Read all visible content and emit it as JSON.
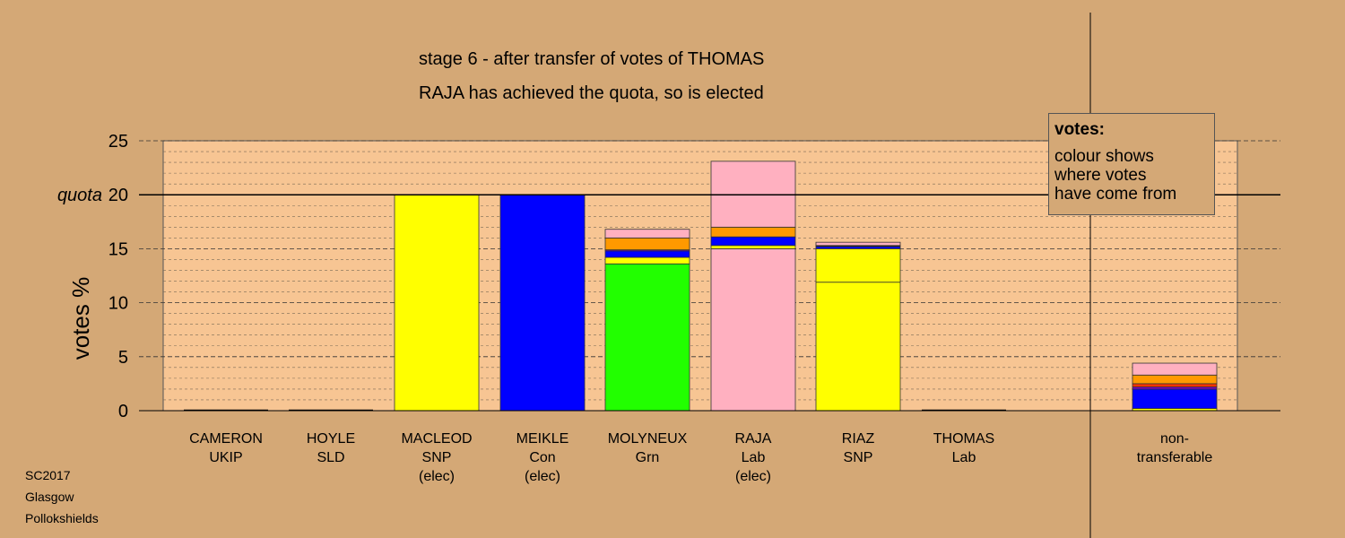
{
  "chart_data": {
    "type": "bar",
    "stacked": true,
    "title": "stage 6 - after transfer of votes of THOMAS",
    "subtitle": "RAJA has achieved the quota, so is elected",
    "ylabel": "votes %",
    "ylim": [
      0,
      25
    ],
    "yticks": [
      0,
      5,
      10,
      15,
      20,
      25
    ],
    "quota": 20,
    "quota_label": "quota",
    "grid": true,
    "categories": [
      {
        "lines": [
          "CAMERON",
          "UKIP"
        ]
      },
      {
        "lines": [
          "HOYLE",
          "SLD"
        ]
      },
      {
        "lines": [
          "MACLEOD",
          "SNP",
          "(elec)"
        ]
      },
      {
        "lines": [
          "MEIKLE",
          "Con",
          "(elec)"
        ]
      },
      {
        "lines": [
          "MOLYNEUX",
          "Grn"
        ]
      },
      {
        "lines": [
          "RAJA",
          "Lab",
          "(elec)"
        ]
      },
      {
        "lines": [
          "RIAZ",
          "SNP"
        ]
      },
      {
        "lines": [
          "THOMAS",
          "Lab"
        ]
      },
      {
        "lines": [
          "non-",
          "transferable"
        ]
      }
    ],
    "colors": {
      "snp": "#ffff00",
      "con": "#0000ff",
      "grn": "#22ff00",
      "lab": "#ffb0c0",
      "sld": "#ff9900",
      "ukip": "#7a00cc",
      "other": "#ff3300"
    },
    "stacks": [
      [],
      [],
      [
        {
          "color": "#ffff00",
          "value": 20.0
        }
      ],
      [
        {
          "color": "#0000ff",
          "value": 20.0
        }
      ],
      [
        {
          "color": "#22ff00",
          "value": 13.6
        },
        {
          "color": "#ffff00",
          "value": 0.6
        },
        {
          "color": "#0000ff",
          "value": 0.6
        },
        {
          "color": "#7a00cc",
          "value": 0.1
        },
        {
          "color": "#ff9900",
          "value": 1.1
        },
        {
          "color": "#ffb0c0",
          "value": 0.8
        }
      ],
      [
        {
          "color": "#ffb0c0",
          "value": 15.0
        },
        {
          "color": "#ffff00",
          "value": 0.3
        },
        {
          "color": "#0000ff",
          "value": 0.8
        },
        {
          "color": "#ff9900",
          "value": 0.9
        },
        {
          "color": "#ffb0c0",
          "value": 6.1
        }
      ],
      [
        {
          "color": "#ffff00",
          "value": 11.9
        },
        {
          "color": "#ffff00",
          "value": 3.1
        },
        {
          "color": "#0000ff",
          "value": 0.2
        },
        {
          "color": "#000000",
          "value": 0.1
        },
        {
          "color": "#ffb0c0",
          "value": 0.3
        }
      ],
      [],
      [
        {
          "color": "#ffff00",
          "value": 0.2
        },
        {
          "color": "#0000ff",
          "value": 1.8
        },
        {
          "color": "#7a00cc",
          "value": 0.2
        },
        {
          "color": "#ff3300",
          "value": 0.3
        },
        {
          "color": "#ff9900",
          "value": 0.8
        },
        {
          "color": "#ffb0c0",
          "value": 1.1
        }
      ]
    ]
  },
  "legend": {
    "title": "votes:",
    "lines": [
      "colour shows",
      "where votes",
      "have come from"
    ]
  },
  "footer": [
    "SC2017",
    "Glasgow",
    "Pollokshields"
  ]
}
